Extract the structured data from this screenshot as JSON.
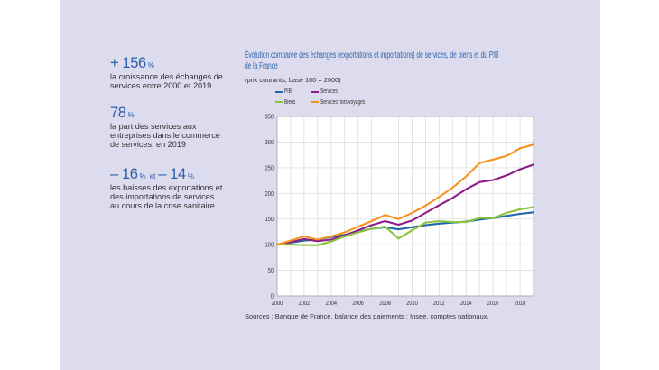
{
  "stats": [
    {
      "value": "+ 156",
      "unit": "%",
      "lines": [
        "la croissance des échanges de",
        "services entre 2000 et 2019"
      ]
    },
    {
      "value": "78",
      "unit": "%",
      "lines": [
        "la part des services aux",
        "entreprises dans le commerce",
        "de services, en 2019"
      ]
    },
    {
      "value": "– 16",
      "unit": "%",
      "conjunction": "et",
      "value2": "– 14",
      "unit2": "%",
      "lines": [
        "les baisses des exportations et",
        "des importations de services",
        "au cours de la crise sanitaire"
      ]
    }
  ],
  "colors": {
    "panel": "#dcdcee",
    "accent": "#2d5ea8",
    "text": "#333333"
  },
  "chart_data": {
    "type": "line",
    "title_lines": [
      "Évolution comparée des échanges (exportations et importations) de services, de biens et du PIB",
      "de la France"
    ],
    "subtitle": "(prix courants, base 100 = 2000)",
    "xlabel": "",
    "ylabel": "",
    "x": [
      2000,
      2001,
      2002,
      2003,
      2004,
      2005,
      2006,
      2007,
      2008,
      2009,
      2010,
      2011,
      2012,
      2013,
      2014,
      2015,
      2016,
      2017,
      2018,
      2019
    ],
    "xlim": [
      2000,
      2019
    ],
    "ylim": [
      0,
      350
    ],
    "x_ticks": [
      "2000",
      "2002",
      "2004",
      "2006",
      "2008",
      "2010",
      "2012",
      "2014",
      "2016",
      "2018"
    ],
    "y_ticks": [
      "0",
      "50",
      "100",
      "150",
      "200",
      "250",
      "300",
      "350"
    ],
    "grid": true,
    "legend_position": "top-left",
    "series": [
      {
        "name": "PIB",
        "color": "#1f67a4",
        "values": [
          100,
          104,
          108,
          110,
          115,
          119,
          125,
          131,
          134,
          130,
          134,
          138,
          141,
          143,
          145,
          149,
          152,
          156,
          160,
          163
        ]
      },
      {
        "name": "Services",
        "color": "#8c1d86",
        "values": [
          100,
          105,
          111,
          107,
          110,
          118,
          128,
          138,
          146,
          139,
          147,
          162,
          177,
          191,
          208,
          222,
          226,
          235,
          247,
          256
        ]
      },
      {
        "name": "Biens",
        "color": "#8cc43e",
        "values": [
          100,
          100,
          99,
          99,
          106,
          116,
          124,
          131,
          135,
          112,
          128,
          143,
          146,
          144,
          144,
          152,
          152,
          162,
          169,
          173
        ]
      },
      {
        "name": "Services hors voyages",
        "color": "#f6931e",
        "values": [
          100,
          108,
          116,
          110,
          116,
          124,
          135,
          146,
          158,
          150,
          162,
          176,
          193,
          211,
          233,
          259,
          266,
          273,
          288,
          295
        ]
      }
    ],
    "source": "Sources : Banque de France, balance des paiements ; Insee, comptes nationaux."
  }
}
